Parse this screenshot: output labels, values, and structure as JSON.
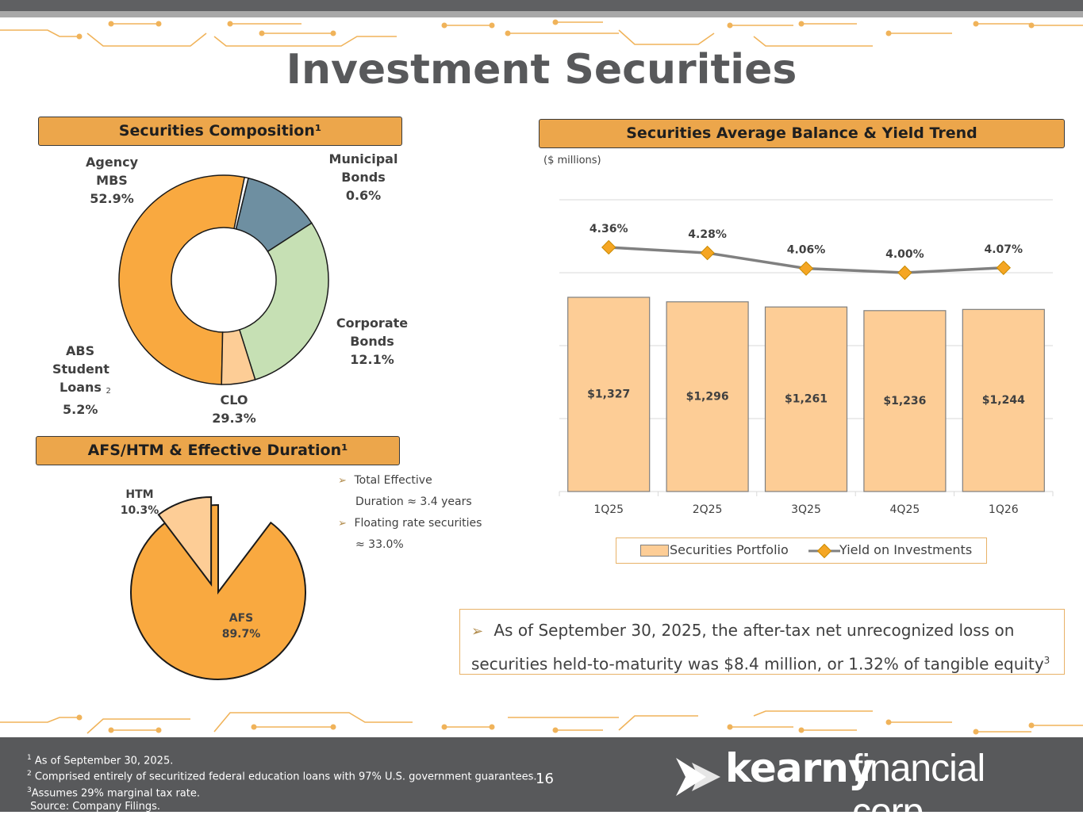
{
  "title": "Investment Securities",
  "composition": {
    "header": "Securities Composition¹",
    "slices": [
      {
        "name": "Agency MBS",
        "label_lines": [
          "Agency",
          "MBS"
        ],
        "pct": 52.9,
        "pct_label": "52.9%",
        "color": "#f9a940"
      },
      {
        "name": "Municipal Bonds",
        "label_lines": [
          "Municipal",
          "Bonds"
        ],
        "pct": 0.6,
        "pct_label": "0.6%",
        "color": "#ffffff"
      },
      {
        "name": "Corporate Bonds",
        "label_lines": [
          "Corporate",
          "Bonds"
        ],
        "pct": 12.1,
        "pct_label": "12.1%",
        "color": "#6e8fa1"
      },
      {
        "name": "CLO",
        "label_lines": [
          "CLO"
        ],
        "pct": 29.3,
        "pct_label": "29.3%",
        "color": "#c6e0b4"
      },
      {
        "name": "ABS Student Loans",
        "label_lines": [
          "ABS",
          "Student",
          "Loans"
        ],
        "superscript": "2",
        "pct": 5.2,
        "pct_label": "5.2%",
        "color": "#fdcd96"
      }
    ]
  },
  "duration": {
    "header": "AFS/HTM & Effective Duration¹",
    "slices": [
      {
        "name": "AFS",
        "pct": 89.7,
        "pct_label": "89.7%",
        "color": "#f9a940"
      },
      {
        "name": "HTM",
        "pct": 10.3,
        "pct_label": "10.3%",
        "color": "#fdcd96"
      }
    ],
    "bullets": [
      {
        "line1": "Total Effective",
        "line2": "Duration ≈ 3.4 years"
      },
      {
        "line1": "Floating rate securities",
        "line2": "≈ 33.0%"
      }
    ]
  },
  "trend": {
    "header": "Securities Average Balance & Yield Trend",
    "units": "($ millions)"
  },
  "chart_data": {
    "type": "bar",
    "categories": [
      "1Q25",
      "2Q25",
      "3Q25",
      "4Q25",
      "1Q26"
    ],
    "series": [
      {
        "name": "Securities Portfolio",
        "type": "bar",
        "values": [
          1327,
          1296,
          1261,
          1236,
          1244
        ],
        "labels": [
          "$1,327",
          "$1,296",
          "$1,261",
          "$1,236",
          "$1,244"
        ],
        "color": "#fdcd96"
      },
      {
        "name": "Yield on Investments",
        "type": "line",
        "values": [
          4.36,
          4.28,
          4.06,
          4.0,
          4.07
        ],
        "labels": [
          "4.36%",
          "4.28%",
          "4.06%",
          "4.00%",
          "4.07%"
        ],
        "color": "#808080",
        "marker_color": "#f5a623"
      }
    ],
    "legend_position": "bottom",
    "grid": true
  },
  "callout": {
    "text": "As of September 30, 2025, the after-tax net unrecognized loss on securities held-to-maturity was $8.4 million, or 1.32% of tangible equity",
    "superscript": "3"
  },
  "footer": {
    "notes": [
      {
        "num": "1",
        "text": "As of September 30, 2025."
      },
      {
        "num": "2",
        "text": "Comprised entirely of securitized federal education loans with 97% U.S. government guarantees."
      },
      {
        "num": "3",
        "text": "Assumes 29% marginal tax rate."
      },
      {
        "num": "",
        "text": "Source: Company Filings."
      }
    ],
    "page_number": "16",
    "logo_bold": "kearny",
    "logo_light": "financial corp."
  }
}
